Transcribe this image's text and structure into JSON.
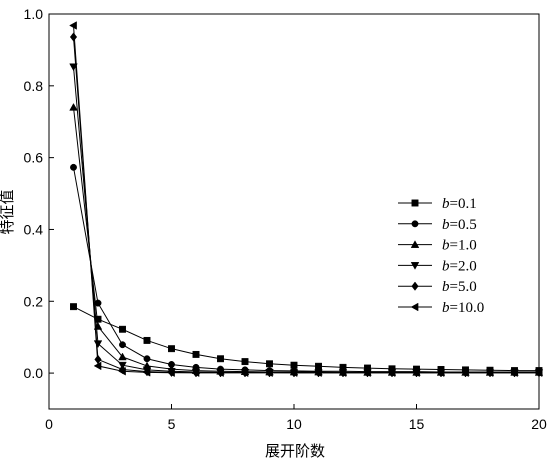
{
  "chart_data": {
    "type": "line",
    "title": "",
    "xlabel": "展开阶数",
    "ylabel": "特征值",
    "xlim": [
      0,
      20
    ],
    "ylim": [
      -0.1,
      1.0
    ],
    "xticks": [
      0,
      5,
      10,
      15,
      20
    ],
    "yticks": [
      0.0,
      0.2,
      0.4,
      0.6,
      0.8,
      1.0
    ],
    "xtick_labels": [
      "0",
      "5",
      "10",
      "15",
      "20"
    ],
    "ytick_labels": [
      "0.0",
      "0.2",
      "0.4",
      "0.6",
      "0.8",
      "1.0"
    ],
    "grid": false,
    "legend_position": "right",
    "legend_var": "b",
    "x": [
      1,
      2,
      3,
      4,
      5,
      6,
      7,
      8,
      9,
      10,
      11,
      12,
      13,
      14,
      15,
      16,
      17,
      18,
      19,
      20
    ],
    "series": [
      {
        "name": "=0.1",
        "marker": "square",
        "values": [
          0.185,
          0.15,
          0.122,
          0.091,
          0.068,
          0.052,
          0.04,
          0.032,
          0.026,
          0.022,
          0.019,
          0.016,
          0.014,
          0.012,
          0.011,
          0.01,
          0.009,
          0.008,
          0.007,
          0.007
        ]
      },
      {
        "name": "=0.5",
        "marker": "circle",
        "values": [
          0.573,
          0.195,
          0.079,
          0.04,
          0.024,
          0.016,
          0.011,
          0.009,
          0.007,
          0.006,
          0.005,
          0.005,
          0.004,
          0.004,
          0.004,
          0.003,
          0.003,
          0.003,
          0.003,
          0.003
        ]
      },
      {
        "name": "=1.0",
        "marker": "triangle-up",
        "values": [
          0.74,
          0.13,
          0.045,
          0.02,
          0.011,
          0.007,
          0.005,
          0.004,
          0.003,
          0.003,
          0.003,
          0.002,
          0.002,
          0.002,
          0.002,
          0.002,
          0.002,
          0.002,
          0.002,
          0.002
        ]
      },
      {
        "name": "=2.0",
        "marker": "triangle-down",
        "values": [
          0.853,
          0.082,
          0.022,
          0.009,
          0.005,
          0.003,
          0.002,
          0.002,
          0.002,
          0.001,
          0.001,
          0.001,
          0.001,
          0.001,
          0.001,
          0.001,
          0.001,
          0.001,
          0.001,
          0.001
        ]
      },
      {
        "name": "=5.0",
        "marker": "diamond",
        "values": [
          0.936,
          0.038,
          0.01,
          0.004,
          0.002,
          0.001,
          0.001,
          0.001,
          0.001,
          0.001,
          0.001,
          0.001,
          0.001,
          0.001,
          0.001,
          0.001,
          0.001,
          0.001,
          0.001,
          0.001
        ]
      },
      {
        "name": "=10.0",
        "marker": "triangle-left",
        "values": [
          0.968,
          0.02,
          0.005,
          0.002,
          0.001,
          0.001,
          0.001,
          0.001,
          0.001,
          0.001,
          0.001,
          0.001,
          0.001,
          0.001,
          0.001,
          0.001,
          0.001,
          0.001,
          0.001,
          0.001
        ]
      }
    ]
  }
}
